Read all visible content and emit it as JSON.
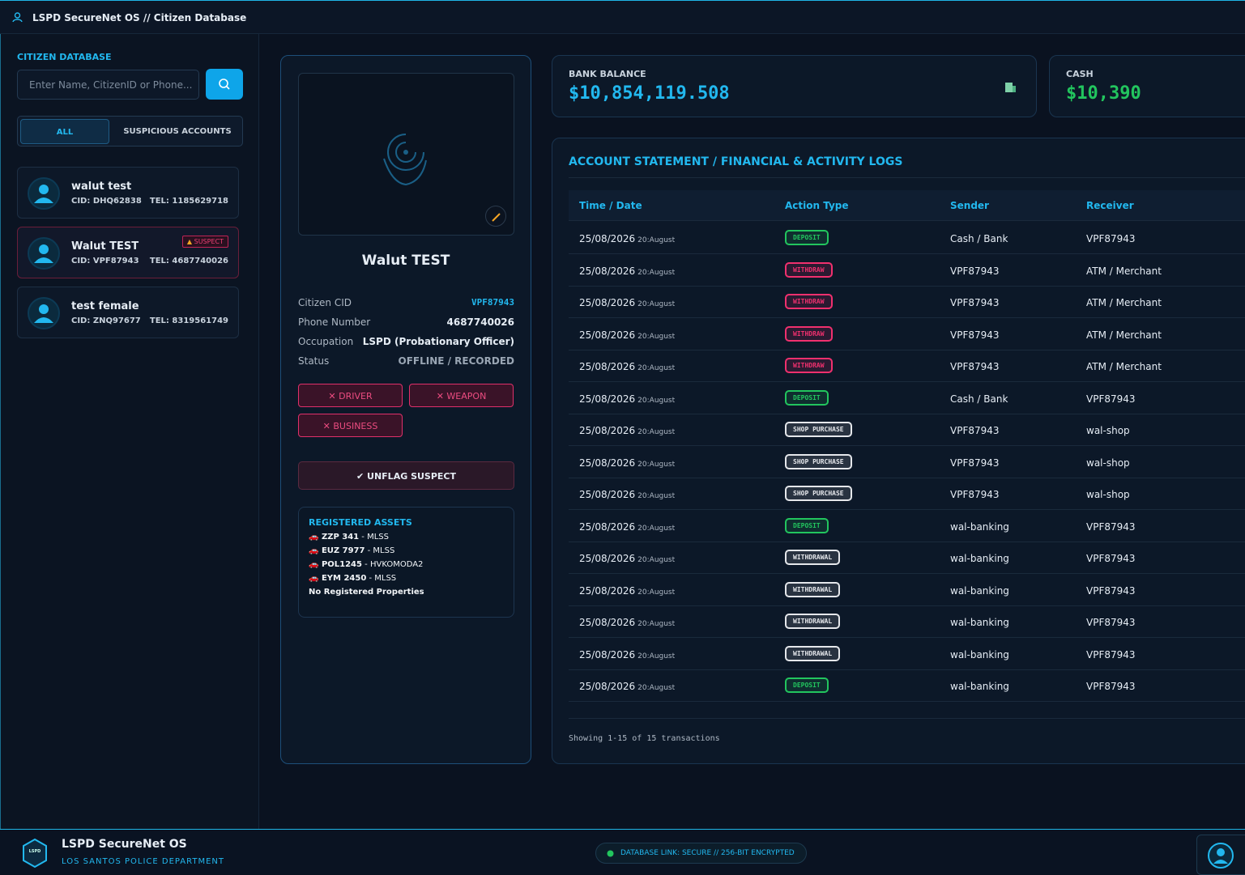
{
  "header": {
    "title": "LSPD SecureNet OS // Citizen Database"
  },
  "sidebar": {
    "title": "CITIZEN DATABASE",
    "search_placeholder": "Enter Name, CitizenID or Phone...",
    "tabs": [
      "ALL",
      "SUSPICIOUS ACCOUNTS"
    ],
    "citizens": [
      {
        "name": "walut test",
        "cid": "CID: DHQ62838",
        "tel": "TEL: 1185629718"
      },
      {
        "name": "Walut TEST",
        "cid": "CID: VPF87943",
        "tel": "TEL: 4687740026",
        "badge": "SUSPECT"
      },
      {
        "name": "test female",
        "cid": "CID: ZNQ97677",
        "tel": "TEL: 8319561749"
      }
    ]
  },
  "profile": {
    "name": "Walut TEST",
    "fields": [
      {
        "label": "Citizen CID",
        "value": "VPF87943"
      },
      {
        "label": "Phone Number",
        "value": "4687740026"
      },
      {
        "label": "Occupation",
        "value": "LSPD (Probationary Officer)"
      },
      {
        "label": "Status",
        "value": "OFFLINE / RECORDED"
      }
    ],
    "licenses": [
      "DRIVER",
      "WEAPON",
      "BUSINESS"
    ],
    "unflag_button": "UNFLAG SUSPECT",
    "assets": {
      "title": "REGISTERED ASSETS",
      "vehicles": [
        {
          "plate": "ZZP 341",
          "model": "MLSS"
        },
        {
          "plate": "EUZ 7977",
          "model": "MLSS"
        },
        {
          "plate": "POL1245",
          "model": "HVKOMODA2"
        },
        {
          "plate": "EYM 2450",
          "model": "MLSS"
        }
      ],
      "properties": "No Registered Properties"
    }
  },
  "balances": {
    "bank": {
      "label": "BANK BALANCE",
      "value": "$10,854,119.508"
    },
    "cash": {
      "label": "CASH",
      "value": "$10,390"
    }
  },
  "statement": {
    "title": "ACCOUNT STATEMENT / FINANCIAL & ACTIVITY LOGS",
    "columns": [
      "Time / Date",
      "Action Type",
      "Sender",
      "Receiver"
    ],
    "rows": [
      {
        "date": "25/08/2026",
        "time": "20:August",
        "action": "DEPOSIT",
        "action_color": "#22c55e",
        "sender": "Cash / Bank",
        "receiver": "VPF87943"
      },
      {
        "date": "25/08/2026",
        "time": "20:August",
        "action": "WITHDRAW",
        "action_color": "#f0306e",
        "sender": "VPF87943",
        "receiver": "ATM / Merchant"
      },
      {
        "date": "25/08/2026",
        "time": "20:August",
        "action": "WITHDRAW",
        "action_color": "#f0306e",
        "sender": "VPF87943",
        "receiver": "ATM / Merchant"
      },
      {
        "date": "25/08/2026",
        "time": "20:August",
        "action": "WITHDRAW",
        "action_color": "#f0306e",
        "sender": "VPF87943",
        "receiver": "ATM / Merchant"
      },
      {
        "date": "25/08/2026",
        "time": "20:August",
        "action": "WITHDRAW",
        "action_color": "#f0306e",
        "sender": "VPF87943",
        "receiver": "ATM / Merchant"
      },
      {
        "date": "25/08/2026",
        "time": "20:August",
        "action": "DEPOSIT",
        "action_color": "#22c55e",
        "sender": "Cash / Bank",
        "receiver": "VPF87943"
      },
      {
        "date": "25/08/2026",
        "time": "20:August",
        "action": "SHOP PURCHASE",
        "action_color": "#e5e7eb",
        "sender": "VPF87943",
        "receiver": "wal-shop"
      },
      {
        "date": "25/08/2026",
        "time": "20:August",
        "action": "SHOP PURCHASE",
        "action_color": "#e5e7eb",
        "sender": "VPF87943",
        "receiver": "wal-shop"
      },
      {
        "date": "25/08/2026",
        "time": "20:August",
        "action": "SHOP PURCHASE",
        "action_color": "#e5e7eb",
        "sender": "VPF87943",
        "receiver": "wal-shop"
      },
      {
        "date": "25/08/2026",
        "time": "20:August",
        "action": "DEPOSIT",
        "action_color": "#22c55e",
        "sender": "wal-banking",
        "receiver": "VPF87943"
      },
      {
        "date": "25/08/2026",
        "time": "20:August",
        "action": "WITHDRAWAL",
        "action_color": "#e5e7eb",
        "sender": "wal-banking",
        "receiver": "VPF87943"
      },
      {
        "date": "25/08/2026",
        "time": "20:August",
        "action": "WITHDRAWAL",
        "action_color": "#e5e7eb",
        "sender": "wal-banking",
        "receiver": "VPF87943"
      },
      {
        "date": "25/08/2026",
        "time": "20:August",
        "action": "WITHDRAWAL",
        "action_color": "#e5e7eb",
        "sender": "wal-banking",
        "receiver": "VPF87943"
      },
      {
        "date": "25/08/2026",
        "time": "20:August",
        "action": "WITHDRAWAL",
        "action_color": "#e5e7eb",
        "sender": "wal-banking",
        "receiver": "VPF87943"
      },
      {
        "date": "25/08/2026",
        "time": "20:August",
        "action": "DEPOSIT",
        "action_color": "#22c55e",
        "sender": "wal-banking",
        "receiver": "VPF87943"
      }
    ],
    "summary": "Showing 1-15 of 15 transactions"
  },
  "footer": {
    "logo": "LSPD",
    "title": "LSPD SecureNet OS",
    "subtitle": "LOS SANTOS POLICE DEPARTMENT",
    "status": "DATABASE LINK: SECURE // 256-BIT ENCRYPTED"
  }
}
